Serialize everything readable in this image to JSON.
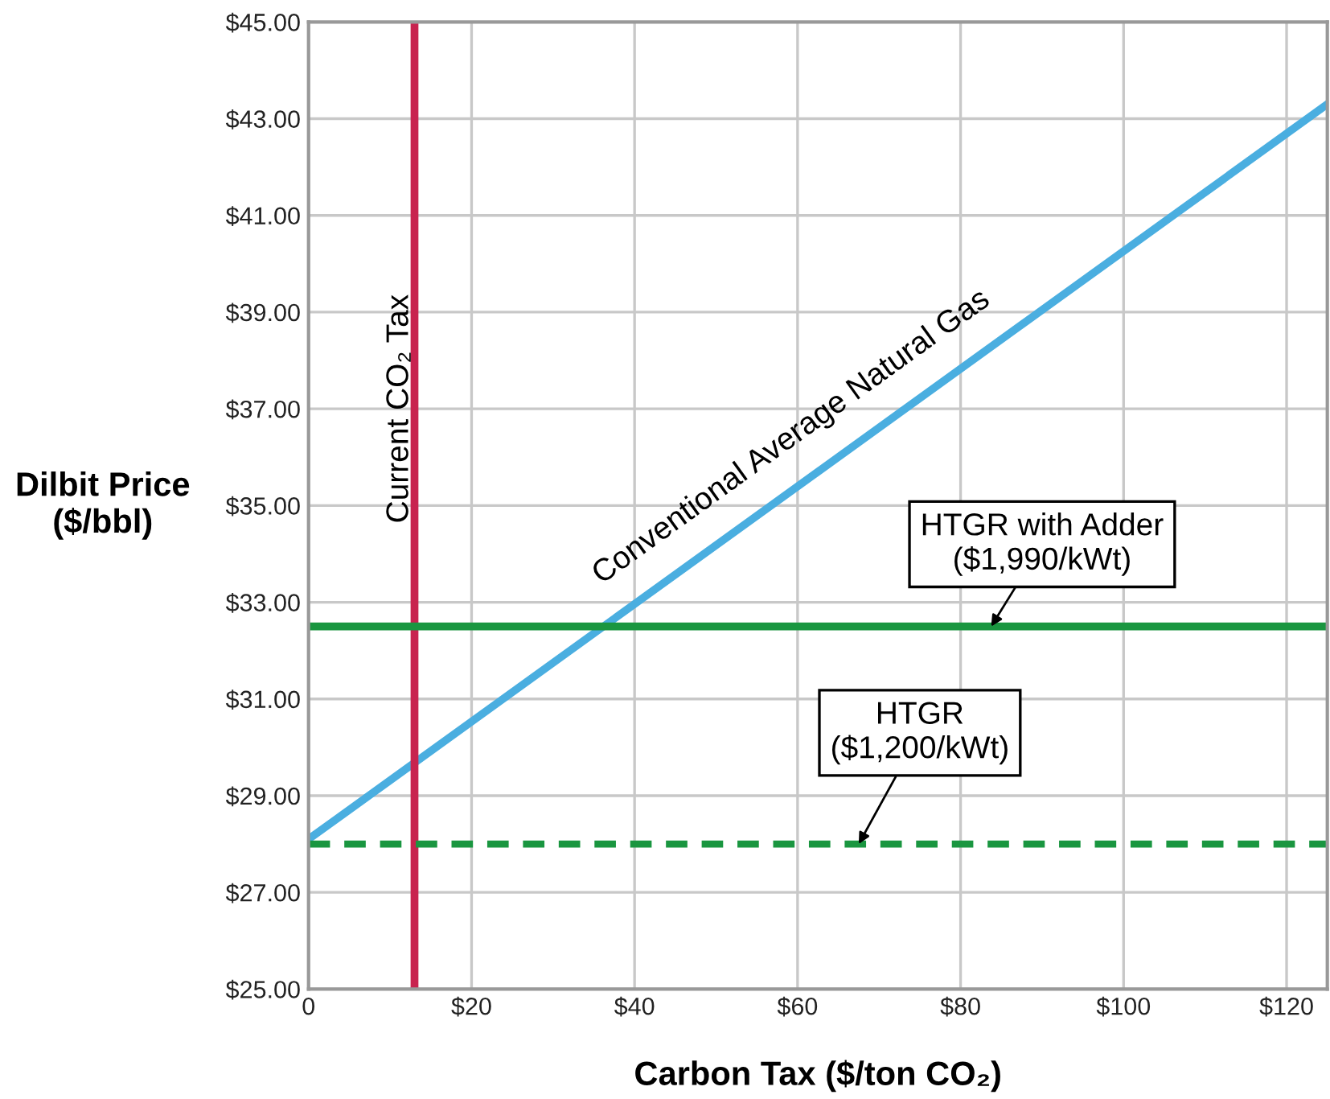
{
  "chart_data": {
    "type": "line",
    "xlabel": "Carbon Tax ($/ton CO₂)",
    "ylabel": "Dilbit Price\n($/bbl)",
    "xlim": [
      0,
      125
    ],
    "ylim": [
      25,
      45
    ],
    "xticks": [
      0,
      {
        "value": 20,
        "label": "$20"
      },
      {
        "value": 40,
        "label": "$40"
      },
      {
        "value": 60,
        "label": "$60"
      },
      {
        "value": 80,
        "label": "$80"
      },
      {
        "value": 100,
        "label": "$100"
      },
      {
        "value": 120,
        "label": "$120"
      }
    ],
    "yticks": [
      {
        "value": 25,
        "label": "$25.00"
      },
      {
        "value": 27,
        "label": "$27.00"
      },
      {
        "value": 29,
        "label": "$29.00"
      },
      {
        "value": 31,
        "label": "$31.00"
      },
      {
        "value": 33,
        "label": "$33.00"
      },
      {
        "value": 35,
        "label": "$35.00"
      },
      {
        "value": 37,
        "label": "$37.00"
      },
      {
        "value": 39,
        "label": "$39.00"
      },
      {
        "value": 41,
        "label": "$41.00"
      },
      {
        "value": 43,
        "label": "$43.00"
      },
      {
        "value": 45,
        "label": "$45.00"
      }
    ],
    "grid": true,
    "marker": "none",
    "series": [
      {
        "name": "Conventional Average Natural Gas",
        "color": "#4aaee0",
        "x": [
          0,
          125
        ],
        "values": [
          28.1,
          43.3
        ],
        "line_style": "solid"
      }
    ],
    "ref_lines": [
      {
        "axis": "x",
        "value": 13,
        "label": "Current CO₂ Tax",
        "color": "#c8234f",
        "line_style": "solid"
      },
      {
        "axis": "y",
        "value": 32.5,
        "label": "HTGR with Adder\n($1,990/kWt)",
        "color": "#1a9640",
        "line_style": "solid"
      },
      {
        "axis": "y",
        "value": 28.0,
        "label": "HTGR\n($1,200/kWt)",
        "color": "#1a9640",
        "line_style": "dashed"
      }
    ]
  }
}
